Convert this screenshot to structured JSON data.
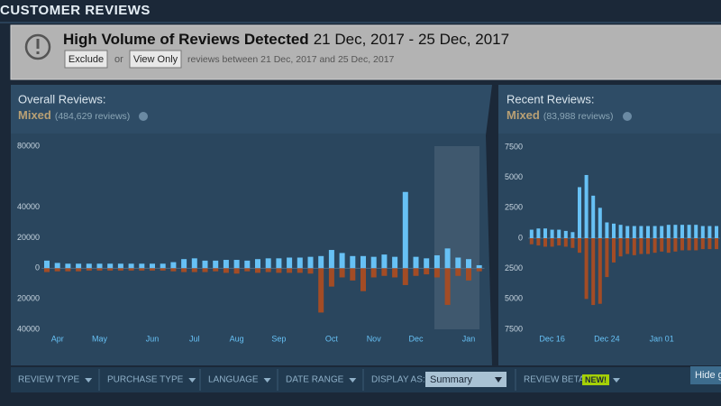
{
  "header": {
    "title": "CUSTOMER REVIEWS"
  },
  "alert": {
    "title": "High Volume of Reviews Detected",
    "dates": "21 Dec, 2017 - 25 Dec, 2017",
    "buttons": [
      "Exclude",
      "View Only"
    ],
    "or": "or",
    "note": "reviews between 21 Dec, 2017 and 25 Dec, 2017"
  },
  "overall": {
    "label": "Overall Reviews:",
    "rating": "Mixed",
    "count": "(484,629 reviews)"
  },
  "recent": {
    "label": "Recent Reviews:",
    "rating": "Mixed",
    "count": "(83,988 reviews)"
  },
  "filters": {
    "items": [
      "REVIEW TYPE",
      "PURCHASE TYPE",
      "LANGUAGE",
      "DATE RANGE"
    ],
    "display_as": "DISPLAY AS:",
    "display_value": "Summary",
    "beta": "REVIEW BETA",
    "badge": "NEW!",
    "hide": "Hide graph"
  },
  "chart_data": [
    {
      "type": "bar",
      "categories": [
        null,
        "Apr",
        null,
        null,
        null,
        "May",
        null,
        null,
        null,
        null,
        "Jun",
        null,
        null,
        null,
        "Jul",
        null,
        null,
        null,
        "Aug",
        null,
        null,
        null,
        "Sep",
        null,
        null,
        null,
        null,
        "Oct",
        null,
        null,
        null,
        "Nov",
        null,
        null,
        null,
        "Dec",
        null,
        null,
        null,
        null,
        "Jan",
        null
      ],
      "series": [
        {
          "color": "#67c1f5",
          "values": [
            5000,
            3500,
            3000,
            3000,
            3000,
            3000,
            3000,
            3000,
            3000,
            3000,
            3000,
            3000,
            4000,
            6000,
            6500,
            5000,
            5000,
            5500,
            5500,
            5000,
            6000,
            6500,
            6500,
            7000,
            7000,
            7500,
            8000,
            12000,
            10000,
            8000,
            8000,
            7500,
            9000,
            7500,
            50000,
            7500,
            6500,
            8500,
            13000,
            7000,
            6000,
            2000
          ]
        },
        {
          "color": "#a34c25",
          "values": [
            -2500,
            -2000,
            -2000,
            -2000,
            -1500,
            -1500,
            -1500,
            -1500,
            -1500,
            -1500,
            -1500,
            -1500,
            -2000,
            -2500,
            -2500,
            -2500,
            -2000,
            -3000,
            -3500,
            -2000,
            -3000,
            -2500,
            -3000,
            -3000,
            -3000,
            -3500,
            -29000,
            -12000,
            -6000,
            -8000,
            -15000,
            -6000,
            -5000,
            -6000,
            -11000,
            -5000,
            -4000,
            -6000,
            -24000,
            -5000,
            -8000,
            -2000
          ]
        }
      ],
      "ylim": [
        -40000,
        80000
      ],
      "yticks": [
        80000,
        40000,
        20000,
        0,
        {
          "value": -20000,
          "label": "20000"
        },
        {
          "value": -40000,
          "label": "40000"
        }
      ]
    },
    {
      "type": "bar",
      "categories": [
        null,
        null,
        null,
        "Dec 16",
        null,
        null,
        null,
        null,
        null,
        null,
        null,
        "Dec 24",
        null,
        null,
        null,
        null,
        null,
        null,
        null,
        "Jan 01",
        null,
        null,
        null,
        null,
        null,
        null,
        null,
        null
      ],
      "series": [
        {
          "color": "#67c1f5",
          "values": [
            700,
            800,
            800,
            700,
            700,
            600,
            500,
            4200,
            5200,
            3500,
            2500,
            1300,
            1200,
            1100,
            1000,
            1000,
            1000,
            1000,
            1000,
            1000,
            1100,
            1100,
            1100,
            1100,
            1100,
            1000,
            1000,
            1000
          ]
        },
        {
          "color": "#a34c25",
          "values": [
            -500,
            -600,
            -700,
            -700,
            -600,
            -700,
            -800,
            -1200,
            -5000,
            -5500,
            -5400,
            -3200,
            -2000,
            -1500,
            -1300,
            -1400,
            -1300,
            -1300,
            -1200,
            -1100,
            -1200,
            -1100,
            -1000,
            -1000,
            -1000,
            -900,
            -900,
            -900
          ]
        }
      ],
      "ylim": [
        -7500,
        7500
      ],
      "yticks": [
        7500,
        5000,
        2500,
        0,
        {
          "value": -2500,
          "label": "2500"
        },
        {
          "value": -5000,
          "label": "5000"
        },
        {
          "value": -7500,
          "label": "7500"
        }
      ]
    }
  ]
}
